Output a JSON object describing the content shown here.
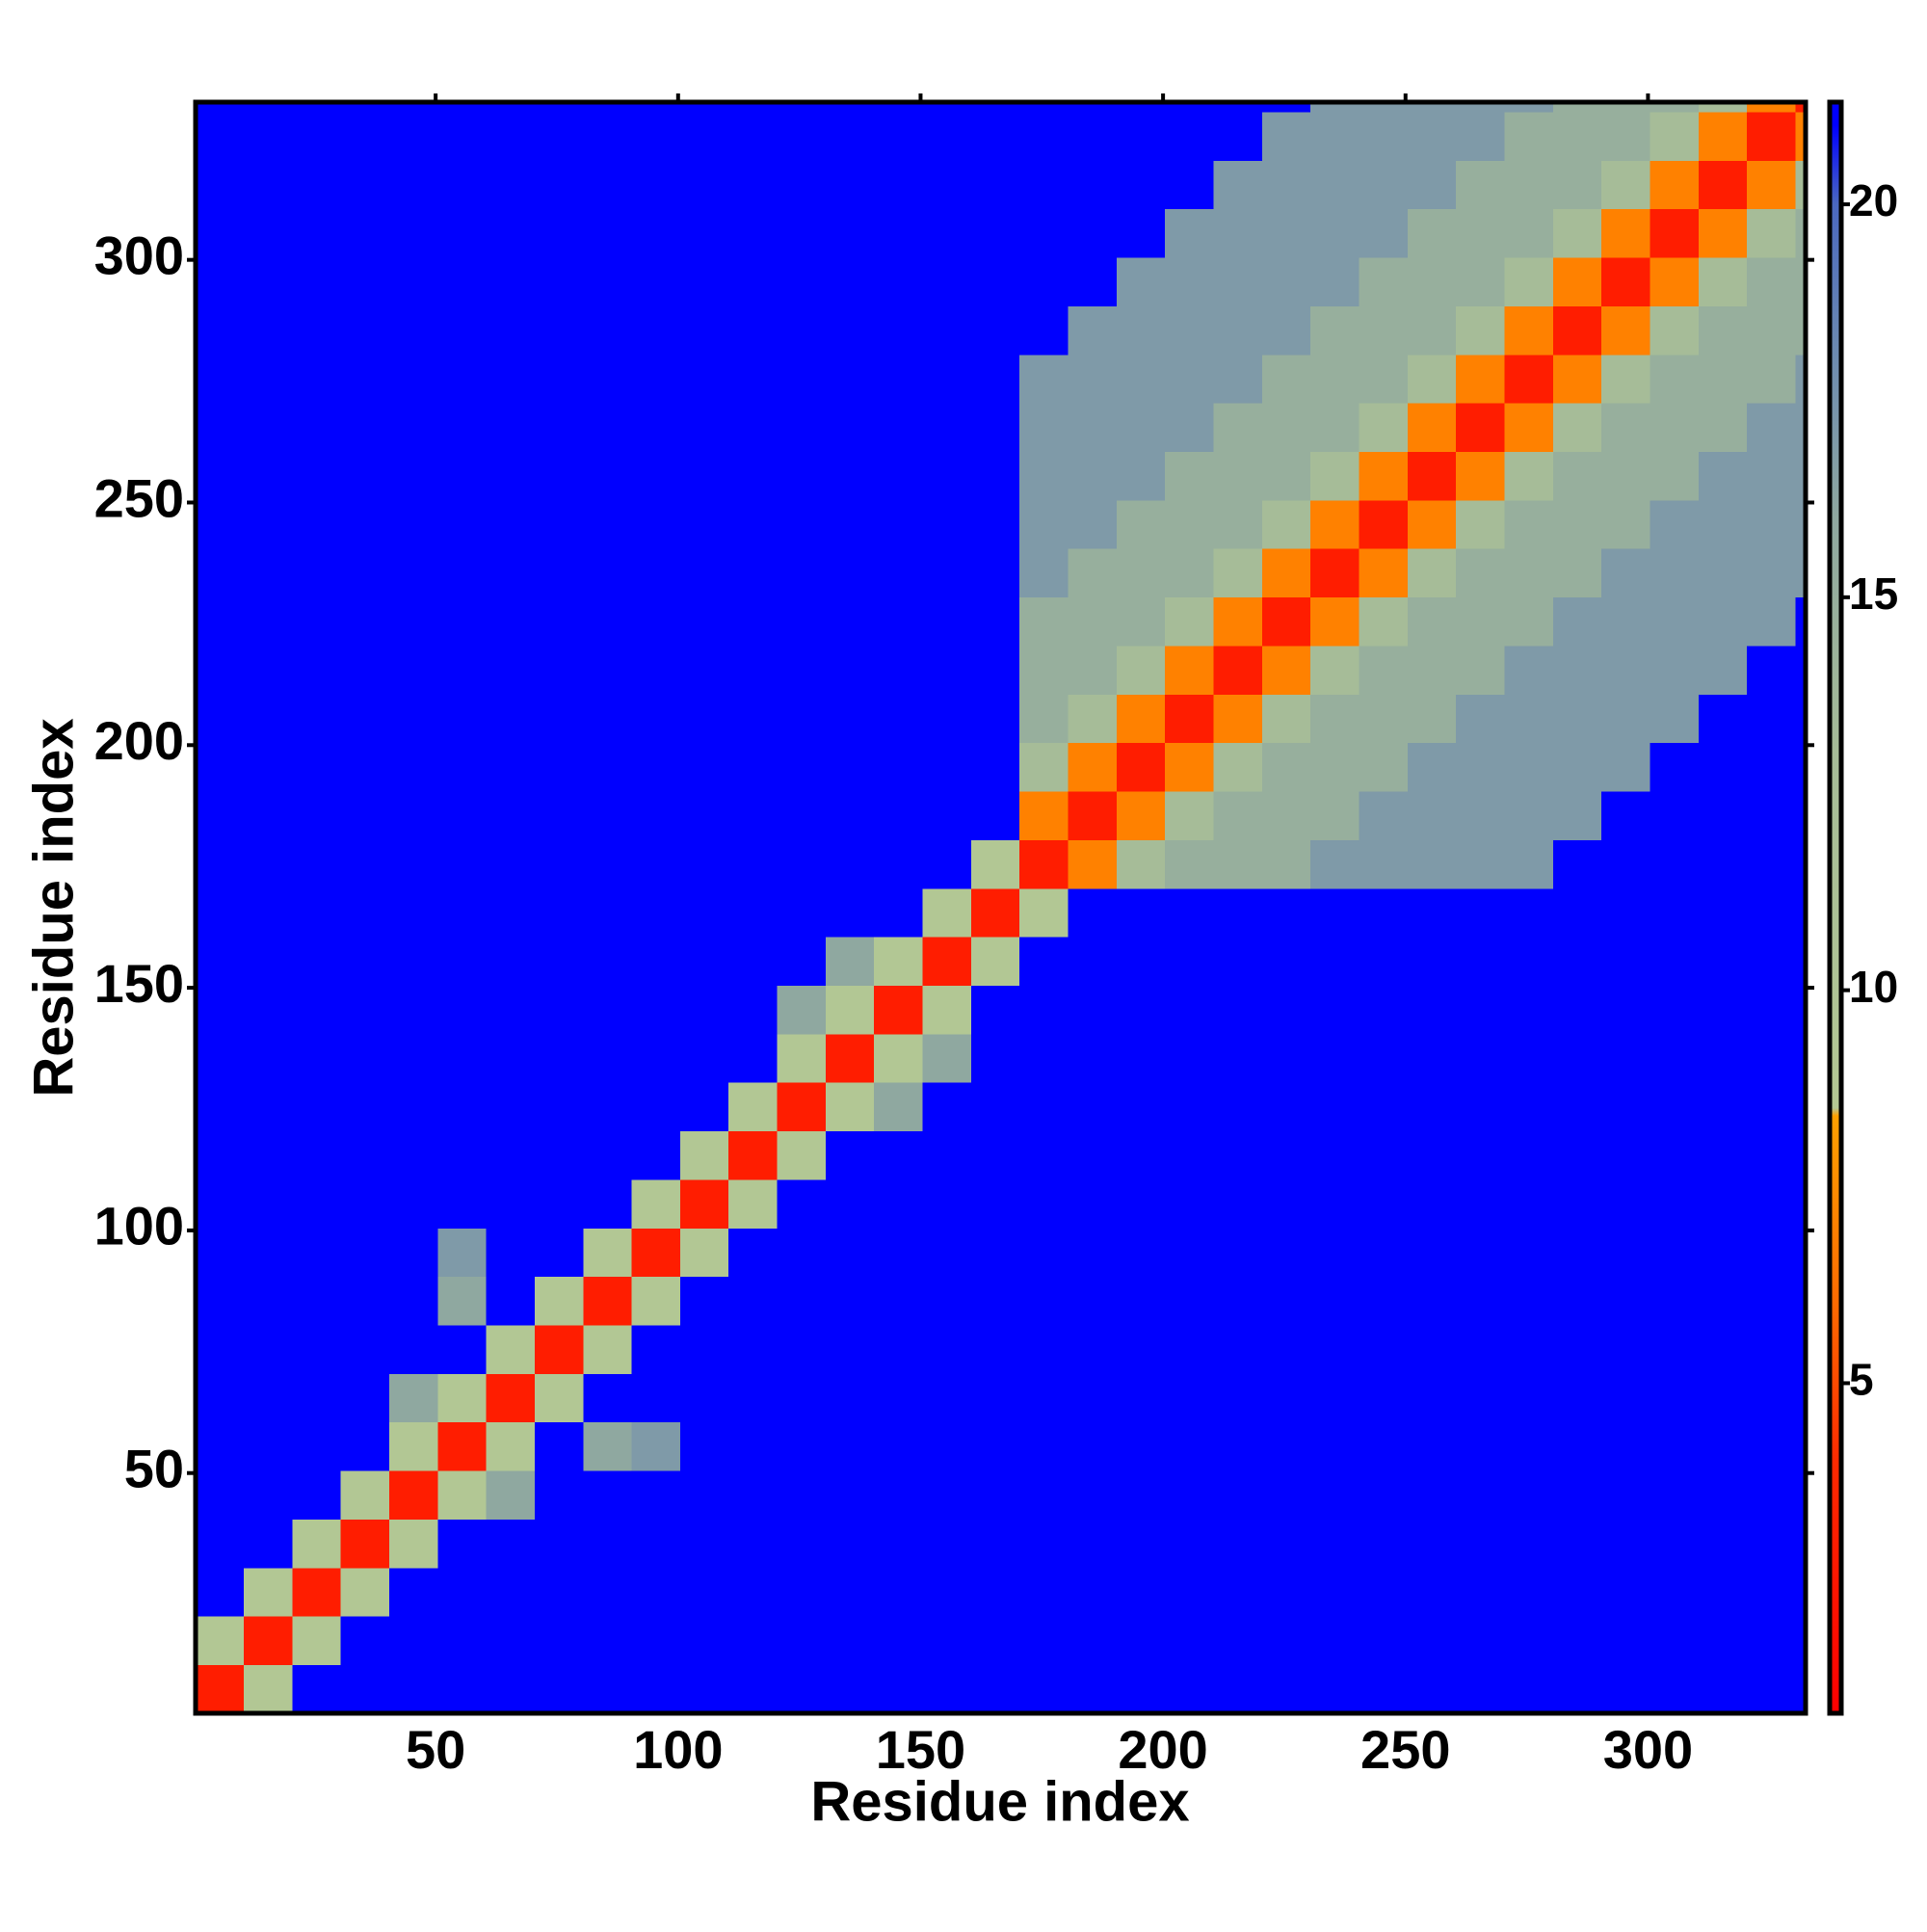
{
  "chart_data": {
    "type": "heatmap",
    "xlabel": "Residue index",
    "ylabel": "Residue index",
    "xlim": [
      0.5,
      332.5
    ],
    "ylim": [
      0.5,
      332.5
    ],
    "xticks": [
      50,
      100,
      150,
      200,
      250,
      300
    ],
    "yticks": [
      50,
      100,
      150,
      200,
      250,
      300
    ],
    "bin_edges": [
      0.5,
      10.5,
      20.5,
      30.5,
      40.5,
      50.5,
      60.5,
      70.5,
      80.5,
      90.5,
      100.5,
      110.5,
      120.5,
      130.5,
      140.5,
      150.5,
      160.5,
      170.5,
      180.5,
      190.5,
      200.5,
      210.5,
      220.5,
      230.5,
      240.5,
      250.5,
      260.5,
      270.5,
      280.5,
      290.5,
      300.5,
      310.5,
      320.5,
      330.5,
      332.5
    ],
    "values": [
      [
        3,
        9,
        21,
        21,
        21,
        21,
        21,
        21,
        21,
        21,
        21,
        21,
        21,
        21,
        21,
        21,
        21,
        21,
        21,
        21,
        21,
        21,
        21,
        21,
        21,
        21,
        21,
        21,
        21,
        21,
        21,
        21,
        21,
        21
      ],
      [
        9,
        3,
        9,
        21,
        21,
        21,
        21,
        21,
        21,
        21,
        21,
        21,
        21,
        21,
        21,
        21,
        21,
        21,
        21,
        21,
        21,
        21,
        21,
        21,
        21,
        21,
        21,
        21,
        21,
        21,
        21,
        21,
        21,
        21
      ],
      [
        21,
        9,
        3,
        9,
        21,
        21,
        21,
        21,
        21,
        21,
        21,
        21,
        21,
        21,
        21,
        21,
        21,
        21,
        21,
        21,
        21,
        21,
        21,
        21,
        21,
        21,
        21,
        21,
        21,
        21,
        21,
        21,
        21,
        21
      ],
      [
        21,
        21,
        9,
        3,
        9,
        21,
        21,
        21,
        21,
        21,
        21,
        21,
        21,
        21,
        21,
        21,
        21,
        21,
        21,
        21,
        21,
        21,
        21,
        21,
        21,
        21,
        21,
        21,
        21,
        21,
        21,
        21,
        21,
        21
      ],
      [
        21,
        21,
        21,
        9,
        3,
        9,
        16,
        21,
        21,
        21,
        21,
        21,
        21,
        21,
        21,
        21,
        21,
        21,
        21,
        21,
        21,
        21,
        21,
        21,
        21,
        21,
        21,
        21,
        21,
        21,
        21,
        21,
        21,
        21
      ],
      [
        21,
        21,
        21,
        21,
        9,
        3,
        9,
        21,
        16,
        17,
        21,
        21,
        21,
        21,
        21,
        21,
        21,
        21,
        21,
        21,
        21,
        21,
        21,
        21,
        21,
        21,
        21,
        21,
        21,
        21,
        21,
        21,
        21,
        21
      ],
      [
        21,
        21,
        21,
        21,
        16,
        9,
        3,
        9,
        21,
        21,
        21,
        21,
        21,
        21,
        21,
        21,
        21,
        21,
        21,
        21,
        21,
        21,
        21,
        21,
        21,
        21,
        21,
        21,
        21,
        21,
        21,
        21,
        21,
        21
      ],
      [
        21,
        21,
        21,
        21,
        21,
        21,
        9,
        3,
        9,
        21,
        21,
        21,
        21,
        21,
        21,
        21,
        21,
        21,
        21,
        21,
        21,
        21,
        21,
        21,
        21,
        21,
        21,
        21,
        21,
        21,
        21,
        21,
        21,
        21
      ],
      [
        21,
        21,
        21,
        21,
        21,
        16,
        21,
        9,
        3,
        9,
        21,
        21,
        21,
        21,
        21,
        21,
        21,
        21,
        21,
        21,
        21,
        21,
        21,
        21,
        21,
        21,
        21,
        21,
        21,
        21,
        21,
        21,
        21,
        21
      ],
      [
        21,
        21,
        21,
        21,
        21,
        17,
        21,
        21,
        9,
        3,
        9,
        21,
        21,
        21,
        21,
        21,
        21,
        21,
        21,
        21,
        21,
        21,
        21,
        21,
        21,
        21,
        21,
        21,
        21,
        21,
        21,
        21,
        21,
        21
      ],
      [
        21,
        21,
        21,
        21,
        21,
        21,
        21,
        21,
        21,
        9,
        3,
        9,
        21,
        21,
        21,
        21,
        21,
        21,
        21,
        21,
        21,
        21,
        21,
        21,
        21,
        21,
        21,
        21,
        21,
        21,
        21,
        21,
        21,
        21
      ],
      [
        21,
        21,
        21,
        21,
        21,
        21,
        21,
        21,
        21,
        21,
        9,
        3,
        9,
        21,
        21,
        21,
        21,
        21,
        21,
        21,
        21,
        21,
        21,
        21,
        21,
        21,
        21,
        21,
        21,
        21,
        21,
        21,
        21,
        21
      ],
      [
        21,
        21,
        21,
        21,
        21,
        21,
        21,
        21,
        21,
        21,
        21,
        9,
        3,
        9,
        16,
        21,
        21,
        21,
        21,
        21,
        21,
        21,
        21,
        21,
        21,
        21,
        21,
        21,
        21,
        21,
        21,
        21,
        21,
        21
      ],
      [
        21,
        21,
        21,
        21,
        21,
        21,
        21,
        21,
        21,
        21,
        21,
        21,
        9,
        3,
        9,
        16,
        21,
        21,
        21,
        21,
        21,
        21,
        21,
        21,
        21,
        21,
        21,
        21,
        21,
        21,
        21,
        21,
        21,
        21
      ],
      [
        21,
        21,
        21,
        21,
        21,
        21,
        21,
        21,
        21,
        21,
        21,
        21,
        16,
        9,
        3,
        9,
        21,
        21,
        21,
        21,
        21,
        21,
        21,
        21,
        21,
        21,
        21,
        21,
        21,
        21,
        21,
        21,
        21,
        21
      ],
      [
        21,
        21,
        21,
        21,
        21,
        21,
        21,
        21,
        21,
        21,
        21,
        21,
        21,
        16,
        9,
        3,
        9,
        21,
        21,
        21,
        21,
        21,
        21,
        21,
        21,
        21,
        21,
        21,
        21,
        21,
        21,
        21,
        21,
        21
      ],
      [
        21,
        21,
        21,
        21,
        21,
        21,
        21,
        21,
        21,
        21,
        21,
        21,
        21,
        21,
        21,
        9,
        3,
        9,
        21,
        21,
        21,
        21,
        21,
        21,
        21,
        21,
        21,
        21,
        21,
        21,
        21,
        21,
        21,
        21
      ],
      [
        21,
        21,
        21,
        21,
        21,
        21,
        21,
        21,
        21,
        21,
        21,
        21,
        21,
        21,
        21,
        21,
        9,
        3,
        7,
        13,
        15,
        15,
        15,
        17,
        17,
        17,
        17,
        17,
        21,
        21,
        21,
        21,
        21,
        21
      ],
      [
        21,
        21,
        21,
        21,
        21,
        21,
        21,
        21,
        21,
        21,
        21,
        21,
        21,
        21,
        21,
        21,
        21,
        7,
        3,
        7,
        13,
        15,
        15,
        15,
        17,
        17,
        17,
        17,
        17,
        21,
        21,
        21,
        21,
        21
      ],
      [
        21,
        21,
        21,
        21,
        21,
        21,
        21,
        21,
        21,
        21,
        21,
        21,
        21,
        21,
        21,
        21,
        21,
        13,
        7,
        3,
        7,
        13,
        15,
        15,
        15,
        17,
        17,
        17,
        17,
        17,
        21,
        21,
        21,
        21
      ],
      [
        21,
        21,
        21,
        21,
        21,
        21,
        21,
        21,
        21,
        21,
        21,
        21,
        21,
        21,
        21,
        21,
        21,
        15,
        13,
        7,
        3,
        7,
        13,
        15,
        15,
        15,
        17,
        17,
        17,
        17,
        17,
        21,
        21,
        21
      ],
      [
        21,
        21,
        21,
        21,
        21,
        21,
        21,
        21,
        21,
        21,
        21,
        21,
        21,
        21,
        21,
        21,
        21,
        15,
        15,
        13,
        7,
        3,
        7,
        13,
        15,
        15,
        15,
        17,
        17,
        17,
        17,
        17,
        21,
        21
      ],
      [
        21,
        21,
        21,
        21,
        21,
        21,
        21,
        21,
        21,
        21,
        21,
        21,
        21,
        21,
        21,
        21,
        21,
        15,
        15,
        15,
        13,
        7,
        3,
        7,
        13,
        15,
        15,
        15,
        17,
        17,
        17,
        17,
        17,
        21
      ],
      [
        21,
        21,
        21,
        21,
        21,
        21,
        21,
        21,
        21,
        21,
        21,
        21,
        21,
        21,
        21,
        21,
        21,
        17,
        15,
        15,
        15,
        13,
        7,
        3,
        7,
        13,
        15,
        15,
        15,
        17,
        17,
        17,
        17,
        17
      ],
      [
        21,
        21,
        21,
        21,
        21,
        21,
        21,
        21,
        21,
        21,
        21,
        21,
        21,
        21,
        21,
        21,
        21,
        17,
        17,
        15,
        15,
        15,
        13,
        7,
        3,
        7,
        13,
        15,
        15,
        15,
        17,
        17,
        17,
        17
      ],
      [
        21,
        21,
        21,
        21,
        21,
        21,
        21,
        21,
        21,
        21,
        21,
        21,
        21,
        21,
        21,
        21,
        21,
        17,
        17,
        17,
        15,
        15,
        15,
        13,
        7,
        3,
        7,
        13,
        15,
        15,
        15,
        17,
        17,
        17
      ],
      [
        21,
        21,
        21,
        21,
        21,
        21,
        21,
        21,
        21,
        21,
        21,
        21,
        21,
        21,
        21,
        21,
        21,
        17,
        17,
        17,
        17,
        15,
        15,
        15,
        13,
        7,
        3,
        7,
        13,
        15,
        15,
        15,
        17,
        17
      ],
      [
        21,
        21,
        21,
        21,
        21,
        21,
        21,
        21,
        21,
        21,
        21,
        21,
        21,
        21,
        21,
        21,
        21,
        17,
        17,
        17,
        17,
        17,
        15,
        15,
        15,
        13,
        7,
        3,
        7,
        13,
        15,
        15,
        15,
        17
      ],
      [
        21,
        21,
        21,
        21,
        21,
        21,
        21,
        21,
        21,
        21,
        21,
        21,
        21,
        21,
        21,
        21,
        21,
        21,
        17,
        17,
        17,
        17,
        17,
        15,
        15,
        15,
        13,
        7,
        3,
        7,
        13,
        15,
        15,
        15
      ],
      [
        21,
        21,
        21,
        21,
        21,
        21,
        21,
        21,
        21,
        21,
        21,
        21,
        21,
        21,
        21,
        21,
        21,
        21,
        21,
        17,
        17,
        17,
        17,
        17,
        15,
        15,
        15,
        13,
        7,
        3,
        7,
        13,
        15,
        15
      ],
      [
        21,
        21,
        21,
        21,
        21,
        21,
        21,
        21,
        21,
        21,
        21,
        21,
        21,
        21,
        21,
        21,
        21,
        21,
        21,
        21,
        17,
        17,
        17,
        17,
        17,
        15,
        15,
        15,
        13,
        7,
        3,
        7,
        13,
        15
      ],
      [
        21,
        21,
        21,
        21,
        21,
        21,
        21,
        21,
        21,
        21,
        21,
        21,
        21,
        21,
        21,
        21,
        21,
        21,
        21,
        21,
        21,
        17,
        17,
        17,
        17,
        17,
        15,
        15,
        15,
        13,
        7,
        3,
        7,
        13
      ],
      [
        21,
        21,
        21,
        21,
        21,
        21,
        21,
        21,
        21,
        21,
        21,
        21,
        21,
        21,
        21,
        21,
        21,
        21,
        21,
        21,
        21,
        21,
        17,
        17,
        17,
        17,
        17,
        15,
        15,
        15,
        13,
        7,
        3,
        7
      ],
      [
        21,
        21,
        21,
        21,
        21,
        21,
        21,
        21,
        21,
        21,
        21,
        21,
        21,
        21,
        21,
        21,
        21,
        21,
        21,
        21,
        21,
        21,
        21,
        17,
        17,
        17,
        17,
        17,
        15,
        15,
        15,
        13,
        7,
        3
      ]
    ],
    "colorbar": {
      "clim": [
        0.8,
        21.3
      ],
      "ticks": [
        5,
        10,
        15,
        20
      ],
      "colorscale": [
        {
          "value": 0.8,
          "color": "#ff0000"
        },
        {
          "value": 4,
          "color": "#ff2a00"
        },
        {
          "value": 6,
          "color": "#ff6a00"
        },
        {
          "value": 8.4,
          "color": "#ffa000"
        },
        {
          "value": 8.5,
          "color": "#b4c894"
        },
        {
          "value": 13,
          "color": "#a6bc98"
        },
        {
          "value": 16,
          "color": "#8fa8a0"
        },
        {
          "value": 18,
          "color": "#6e8cb0"
        },
        {
          "value": 20,
          "color": "#4a68c0"
        },
        {
          "value": 21,
          "color": "#0000ff"
        },
        {
          "value": 21.3,
          "color": "#0000ff"
        }
      ]
    }
  }
}
